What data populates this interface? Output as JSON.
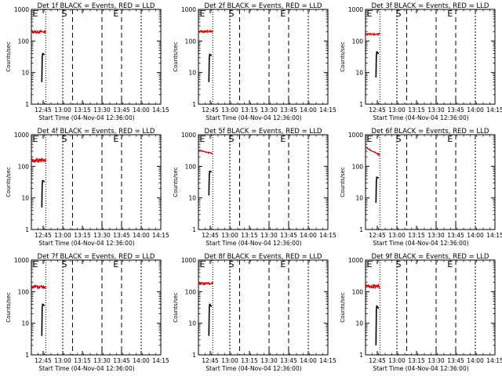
{
  "chart_data": [
    {
      "type": "line",
      "title": "Det 1f BLACK = Events, RED = LLD",
      "red_level": 195,
      "red_noise": 0.1,
      "black": {
        "base": 5,
        "peak": 40,
        "tail": 36
      }
    },
    {
      "type": "line",
      "title": "Det 2f BLACK = Events, RED = LLD",
      "red_level": 200,
      "red_noise": 0.08,
      "black": {
        "base": 5,
        "peak": 38,
        "tail": 33
      }
    },
    {
      "type": "line",
      "title": "Det 3f BLACK = Events, RED = LLD",
      "red_level": 165,
      "red_noise": 0.06,
      "black": {
        "base": 7,
        "peak": 45,
        "tail": 38
      }
    },
    {
      "type": "line",
      "title": "Det 4f BLACK = Events, RED = LLD",
      "red_level": 155,
      "red_noise": 0.14,
      "black": {
        "base": 5,
        "peak": 35,
        "tail": 32
      }
    },
    {
      "type": "line",
      "title": "Det 5f BLACK = Events, RED = LLD",
      "red_level": 330,
      "red_noise": 0.04,
      "red_trend": -0.12,
      "black": {
        "base": 12,
        "peak": 70,
        "tail": 65
      }
    },
    {
      "type": "line",
      "title": "Det 6f BLACK = Events, RED = LLD",
      "red_level": 400,
      "red_noise": 0.04,
      "red_trend": -0.25,
      "black": {
        "base": 7,
        "peak": 45,
        "tail": 42
      }
    },
    {
      "type": "line",
      "title": "Det 7f BLACK = Events, RED = LLD",
      "red_level": 140,
      "red_noise": 0.12,
      "black": {
        "base": 4,
        "peak": 40,
        "tail": 35
      }
    },
    {
      "type": "line",
      "title": "Det 8f BLACK = Events, RED = LLD",
      "red_level": 185,
      "red_noise": 0.1,
      "black": {
        "base": 4,
        "peak": 40,
        "tail": 32
      }
    },
    {
      "type": "line",
      "title": "Det 9f BLACK = Events, RED = LLD",
      "red_level": 145,
      "red_noise": 0.14,
      "black": {
        "base": 2,
        "peak": 35,
        "tail": 28
      }
    }
  ],
  "shared": {
    "xlabel": "Start Time (04-Nov-04 12:36:00)",
    "ylabel": "Counts/sec",
    "y_scale": "log",
    "ylim": [
      1,
      1000
    ],
    "y_ticks": [
      "1",
      "10",
      "100",
      "1000"
    ],
    "x_tick_labels": [
      "12:45",
      "13:00",
      "13:15",
      "13:30",
      "13:45",
      "14:00",
      "14:15"
    ],
    "markers": [
      "E",
      "S",
      "E"
    ],
    "colors": {
      "events": "#000000",
      "lld": "#cc0000",
      "frame": "#000000"
    }
  }
}
